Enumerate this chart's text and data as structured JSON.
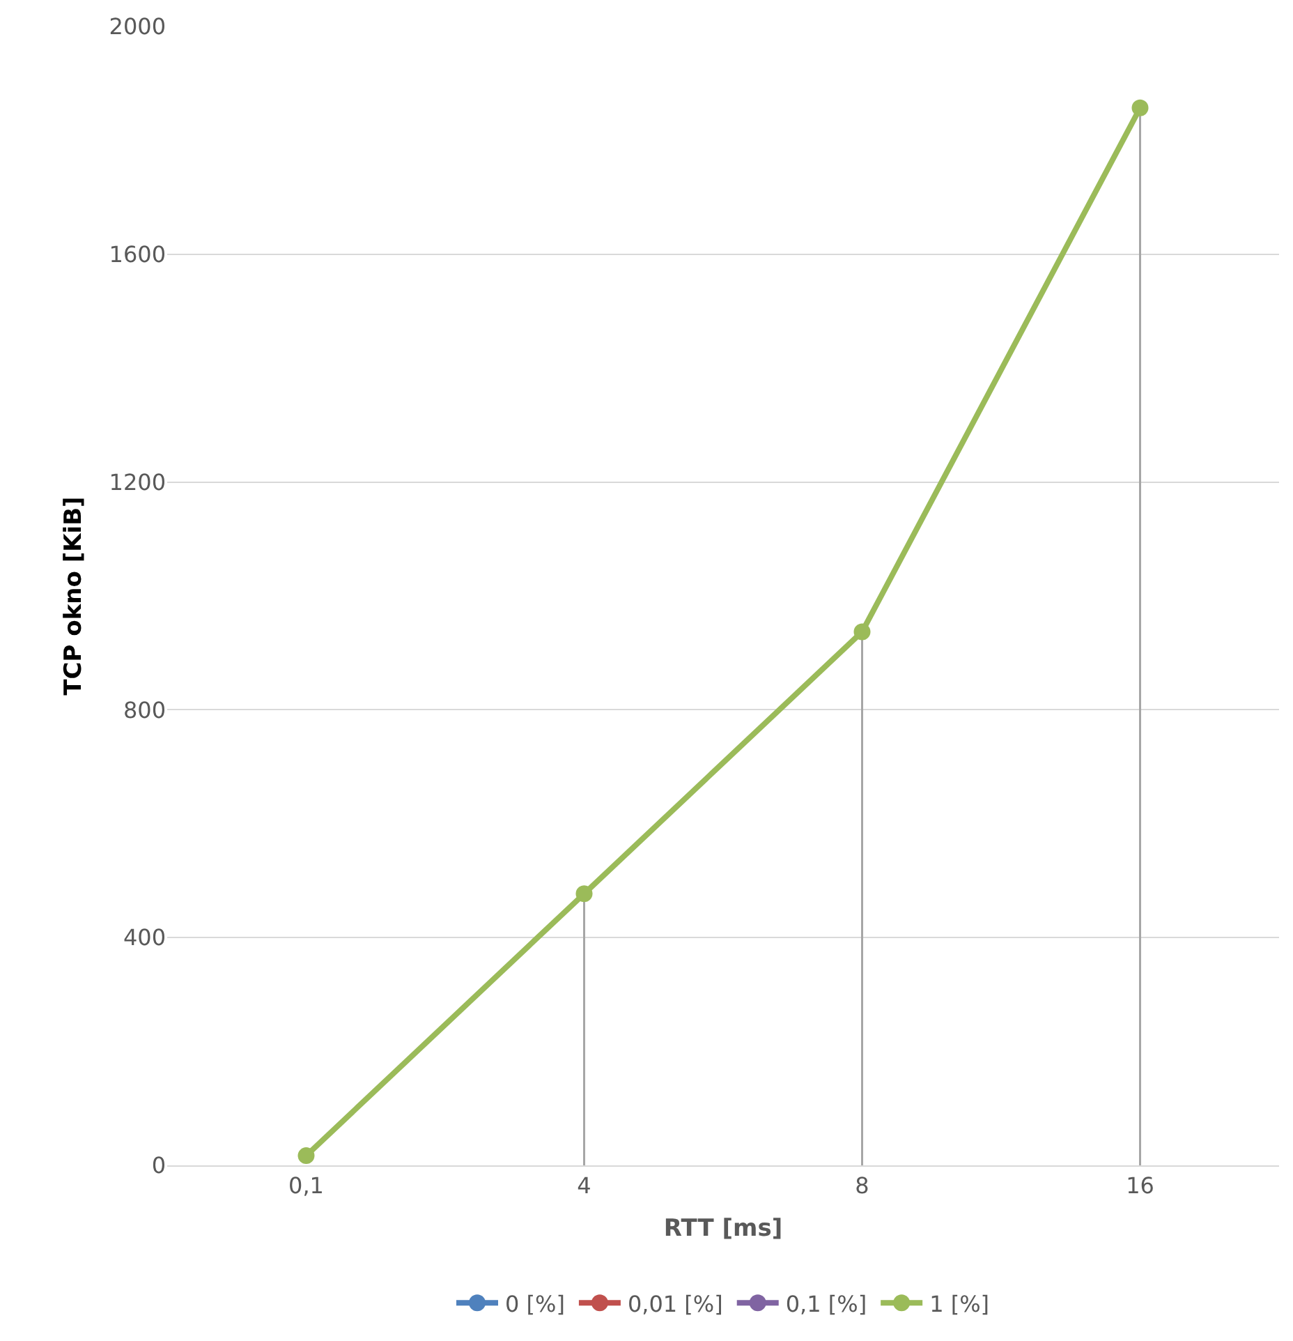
{
  "chart_data": {
    "type": "line",
    "xlabel": "RTT [ms]",
    "ylabel": "TCP okno [KiB]",
    "categories": [
      "0,1",
      "4",
      "8",
      "16"
    ],
    "series": [
      {
        "name": "0 [%]",
        "color": "#4f81bd",
        "values": [
          null,
          null,
          null,
          null
        ]
      },
      {
        "name": "0,01 [%]",
        "color": "#c0504d",
        "values": [
          null,
          null,
          null,
          null
        ]
      },
      {
        "name": "0,1 [%]",
        "color": "#8064a2",
        "values": [
          null,
          null,
          null,
          null
        ]
      },
      {
        "name": "1 [%]",
        "color": "#9bbb59",
        "values": [
          17,
          477,
          937,
          1857
        ],
        "errors": [
          null,
          [
            477,
            0
          ],
          [
            937,
            0
          ],
          [
            1857,
            0
          ]
        ]
      }
    ],
    "ylim": [
      0,
      2000
    ],
    "yticks": [
      0,
      400,
      800,
      1200,
      1600,
      2000
    ],
    "grid": "y",
    "legend": "bottom",
    "marker": "circle",
    "line_style": "solid"
  }
}
